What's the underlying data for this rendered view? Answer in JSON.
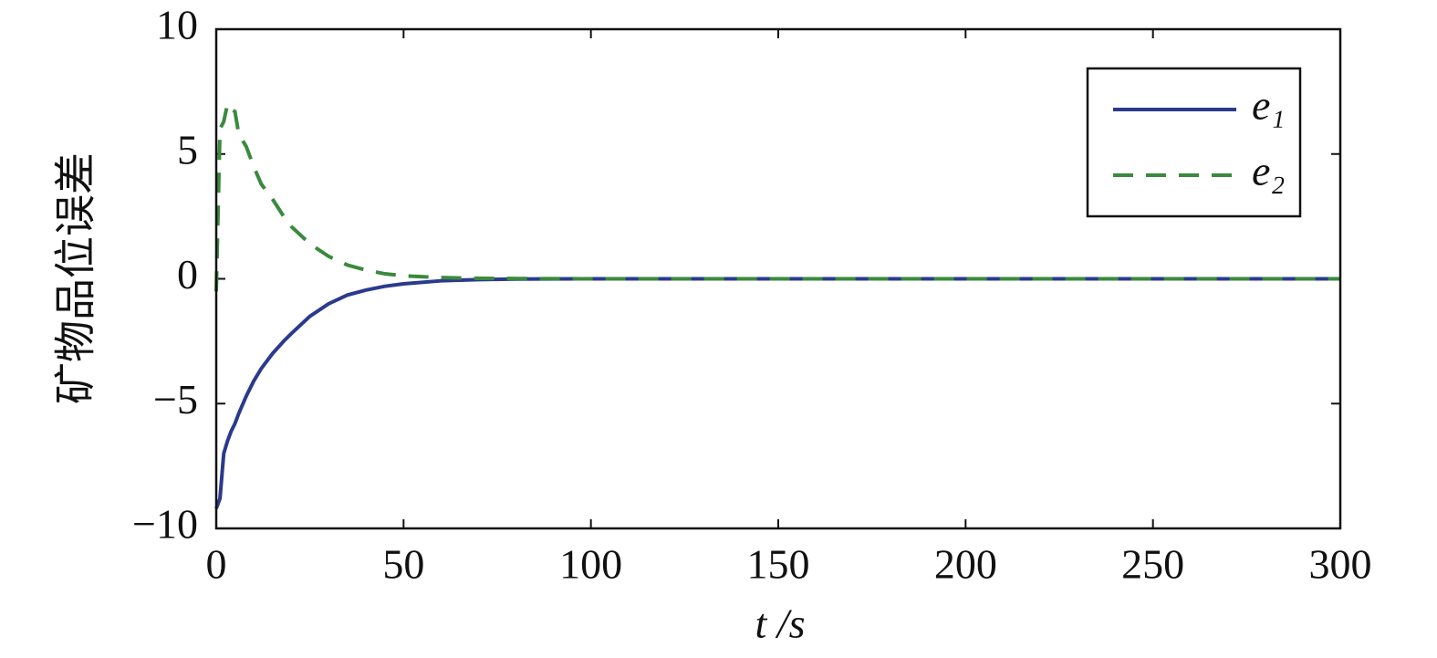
{
  "chart_data": {
    "type": "line",
    "xlabel": "t /s",
    "ylabel": "矿物品位误差",
    "x": [
      0,
      1,
      2,
      3,
      4,
      5,
      6,
      8,
      10,
      12,
      15,
      18,
      20,
      25,
      30,
      35,
      40,
      45,
      50,
      60,
      70,
      80,
      100,
      150,
      200,
      250,
      300
    ],
    "series": [
      {
        "name": "e₁",
        "color": "#2b3a8c",
        "dash": false,
        "values": [
          -9.2,
          -8.8,
          -7.0,
          -6.5,
          -6.1,
          -5.8,
          -5.4,
          -4.7,
          -4.1,
          -3.6,
          -3.0,
          -2.5,
          -2.2,
          -1.5,
          -1.0,
          -0.65,
          -0.45,
          -0.3,
          -0.2,
          -0.08,
          -0.03,
          -0.01,
          0,
          0,
          0,
          0,
          0
        ]
      },
      {
        "name": "e₂",
        "color": "#3a8a3e",
        "dash": true,
        "values": [
          -0.5,
          6.0,
          6.3,
          7.0,
          6.8,
          6.7,
          5.8,
          5.3,
          4.5,
          3.8,
          3.2,
          2.5,
          2.1,
          1.4,
          0.9,
          0.55,
          0.35,
          0.2,
          0.12,
          0.05,
          0.02,
          0.01,
          0,
          0,
          0,
          0,
          0
        ]
      }
    ],
    "xlim": [
      0,
      300
    ],
    "xticks": [
      0,
      50,
      100,
      150,
      200,
      250,
      300
    ],
    "ylim": [
      -10,
      10
    ],
    "yticks": [
      {
        "value": -10,
        "label": "−10"
      },
      {
        "value": -5,
        "label": "−5"
      },
      0,
      5,
      10
    ],
    "legend": "upper right"
  }
}
